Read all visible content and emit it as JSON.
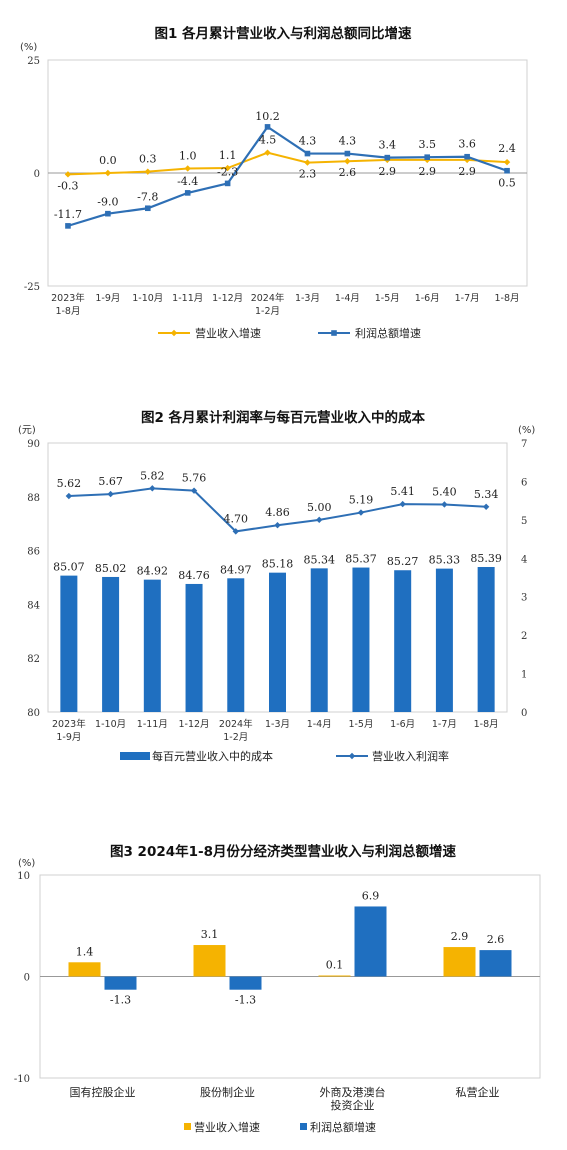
{
  "chart_data": [
    {
      "type": "line",
      "title": "图1  各月累计营业收入与利润总额同比增速",
      "unit": "(%)",
      "categories": [
        [
          "2023年",
          "1-8月"
        ],
        [
          "1-9月"
        ],
        [
          "1-10月"
        ],
        [
          "1-11月"
        ],
        [
          "1-12月"
        ],
        [
          "2024年",
          "1-2月"
        ],
        [
          "1-3月"
        ],
        [
          "1-4月"
        ],
        [
          "1-5月"
        ],
        [
          "1-6月"
        ],
        [
          "1-7月"
        ],
        [
          "1-8月"
        ]
      ],
      "yticks": [
        "25",
        "0",
        "-25"
      ],
      "ylim": [
        -25,
        25
      ],
      "series": [
        {
          "name": "营业收入增速",
          "color": "#F5B301",
          "marker": "diamond",
          "values": [
            -0.3,
            0.0,
            0.3,
            1.0,
            1.1,
            4.5,
            2.3,
            2.6,
            2.9,
            2.9,
            2.9,
            2.4
          ],
          "labels": [
            "-0.3",
            "0.0",
            "0.3",
            "1.0",
            "1.1",
            "4.5",
            "2.3",
            "2.6",
            "2.9",
            "2.9",
            "2.9",
            "2.4"
          ]
        },
        {
          "name": "利润总额增速",
          "color": "#2E6FB5",
          "marker": "square",
          "values": [
            -11.7,
            -9.0,
            -7.8,
            -4.4,
            -2.3,
            10.2,
            4.3,
            4.3,
            3.4,
            3.5,
            3.6,
            0.5
          ],
          "labels": [
            "-11.7",
            "-9.0",
            "-7.8",
            "-4.4",
            "-2.3",
            "10.2",
            "4.3",
            "4.3",
            "3.4",
            "3.5",
            "3.6",
            "0.5"
          ]
        }
      ],
      "legend_position": "bottom"
    },
    {
      "type": "bar",
      "title": "图2  各月累计利润率与每百元营业收入中的成本",
      "unit_left": "(元)",
      "unit_right": "(%)",
      "categories": [
        [
          "2023年",
          "1-9月"
        ],
        [
          "1-10月"
        ],
        [
          "1-11月"
        ],
        [
          "1-12月"
        ],
        [
          "2024年",
          "1-2月"
        ],
        [
          "1-3月"
        ],
        [
          "1-4月"
        ],
        [
          "1-5月"
        ],
        [
          "1-6月"
        ],
        [
          "1-7月"
        ],
        [
          "1-8月"
        ]
      ],
      "yticks_left": [
        "90",
        "88",
        "86",
        "84",
        "82",
        "80"
      ],
      "ylim_left": [
        80,
        90
      ],
      "yticks_right": [
        "7",
        "6",
        "5",
        "4",
        "3",
        "2",
        "1",
        "0"
      ],
      "ylim_right": [
        0,
        7
      ],
      "bars": {
        "name": "每百元营业收入中的成本",
        "color": "#1F6FC0",
        "values": [
          85.07,
          85.02,
          84.92,
          84.76,
          84.97,
          85.18,
          85.34,
          85.37,
          85.27,
          85.33,
          85.39
        ],
        "labels": [
          "85.07",
          "85.02",
          "84.92",
          "84.76",
          "84.97",
          "85.18",
          "85.34",
          "85.37",
          "85.27",
          "85.33",
          "85.39"
        ]
      },
      "line": {
        "name": "营业收入利润率",
        "color": "#2E6FB5",
        "marker": "diamond",
        "values": [
          5.62,
          5.67,
          5.82,
          5.76,
          4.7,
          4.86,
          5.0,
          5.19,
          5.41,
          5.4,
          5.34
        ],
        "labels": [
          "5.62",
          "5.67",
          "5.82",
          "5.76",
          "4.70",
          "4.86",
          "5.00",
          "5.19",
          "5.41",
          "5.40",
          "5.34"
        ]
      },
      "legend_position": "bottom"
    },
    {
      "type": "bar",
      "title": "图3  2024年1-8月份分经济类型营业收入与利润总额增速",
      "unit": "(%)",
      "categories": [
        [
          "国有控股企业"
        ],
        [
          "股份制企业"
        ],
        [
          "外商及港澳台",
          "投资企业"
        ],
        [
          "私营企业"
        ]
      ],
      "yticks": [
        "10",
        "0",
        "-10"
      ],
      "ylim": [
        -10,
        10
      ],
      "series": [
        {
          "name": "营业收入增速",
          "color": "#F5B301",
          "values": [
            1.4,
            3.1,
            0.1,
            2.9
          ],
          "labels": [
            "1.4",
            "3.1",
            "0.1",
            "2.9"
          ]
        },
        {
          "name": "利润总额增速",
          "color": "#1F6FC0",
          "values": [
            -1.3,
            -1.3,
            6.9,
            2.6
          ],
          "labels": [
            "-1.3",
            "-1.3",
            "6.9",
            "2.6"
          ]
        }
      ],
      "legend_position": "bottom"
    }
  ]
}
